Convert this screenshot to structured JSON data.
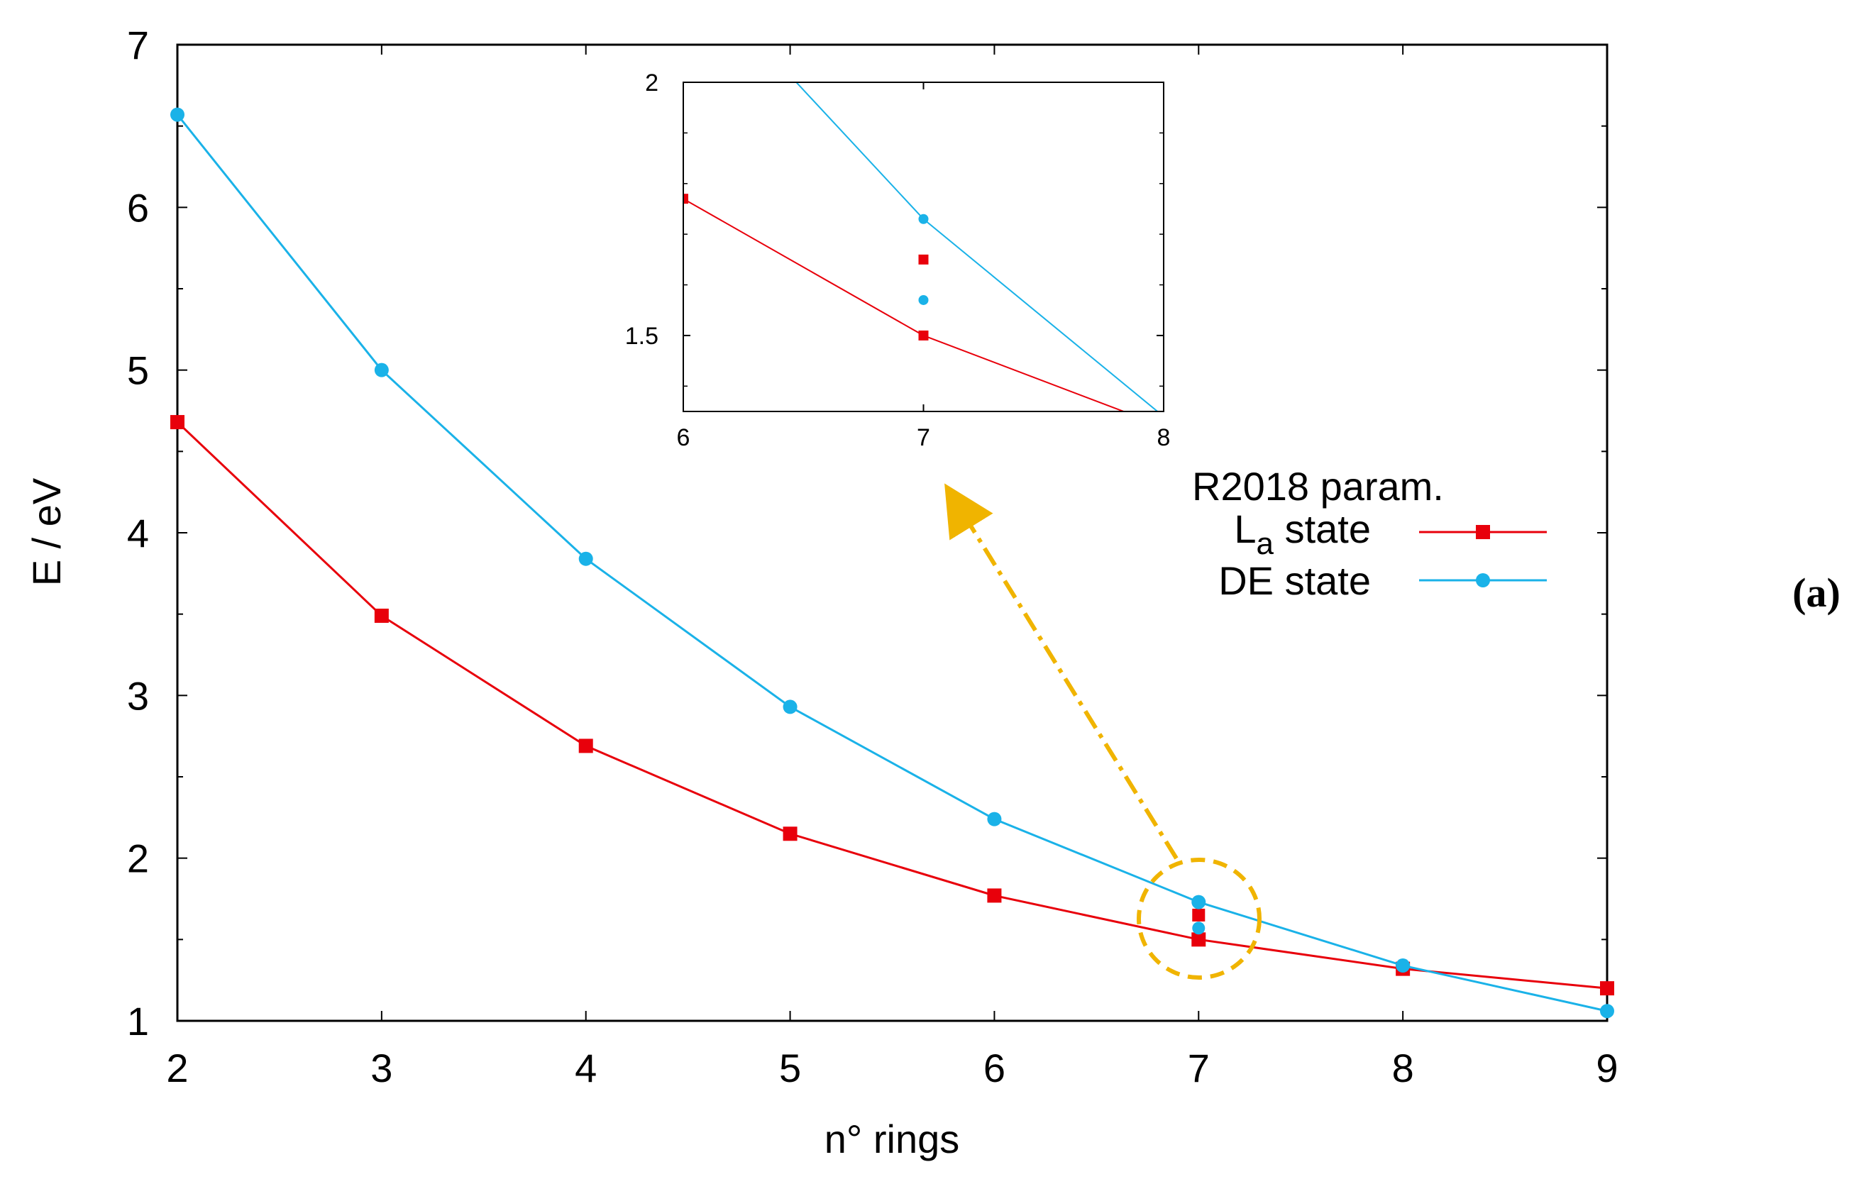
{
  "chart_data": {
    "type": "line",
    "panel_label": "(a)",
    "xlabel": "n° rings",
    "ylabel": "E / eV",
    "xlim": [
      2,
      9
    ],
    "ylim": [
      1,
      7
    ],
    "xticks": [
      "2",
      "3",
      "4",
      "5",
      "6",
      "7",
      "8",
      "9"
    ],
    "yticks": [
      "1",
      "2",
      "3",
      "4",
      "5",
      "6",
      "7"
    ],
    "legend": {
      "title": "R2018 param.",
      "placement": "right",
      "entries": [
        {
          "main": "L",
          "sub": "a",
          "rest": " state",
          "series": "La"
        },
        {
          "main": "DE state",
          "sub": "",
          "rest": "",
          "series": "DE"
        }
      ]
    },
    "series": [
      {
        "name": "La state",
        "key": "La",
        "color": "#e8000b",
        "marker": "square",
        "x": [
          2,
          3,
          4,
          5,
          6,
          7,
          8,
          9
        ],
        "y": [
          4.68,
          3.49,
          2.69,
          2.15,
          1.77,
          1.5,
          1.32,
          1.2
        ],
        "extra_points": [
          {
            "x": 7,
            "y": 1.65
          }
        ]
      },
      {
        "name": "DE state",
        "key": "DE",
        "color": "#1ab2e8",
        "marker": "circle",
        "x": [
          2,
          3,
          4,
          5,
          6,
          7,
          8,
          9
        ],
        "y": [
          6.57,
          5.0,
          3.84,
          2.93,
          2.24,
          1.73,
          1.34,
          1.06
        ],
        "extra_points": [
          {
            "x": 7,
            "y": 1.57
          }
        ]
      }
    ],
    "inset": {
      "xlim": [
        6,
        8
      ],
      "ylim": [
        1.35,
        2.0
      ],
      "xticks": [
        "6",
        "7",
        "8"
      ],
      "yticks": [
        {
          "value": 1.5,
          "label": "1.5"
        },
        {
          "value": 2.0,
          "label": "2"
        }
      ]
    },
    "annotation": {
      "type": "zoom-callout",
      "description": "dashed ellipse around n=7 with dash-dot arrow to inset",
      "color": "#f0b400",
      "target": {
        "x": 7,
        "y": 1.6
      }
    }
  }
}
